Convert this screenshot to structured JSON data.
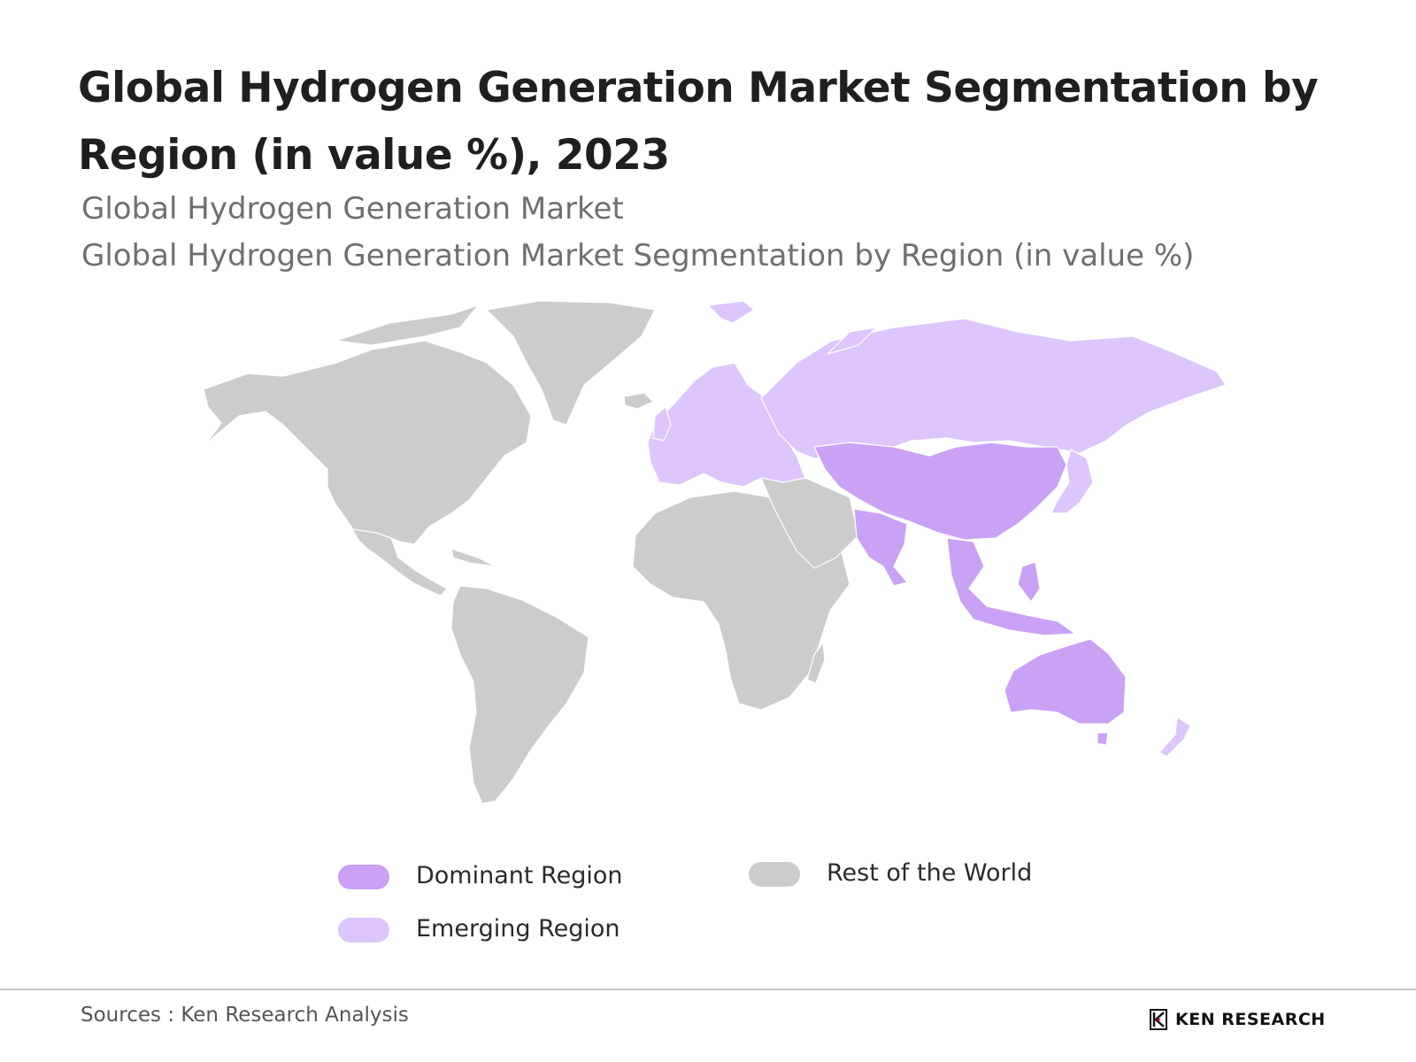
{
  "header": {
    "title": "Global Hydrogen Generation Market Segmentation by Region (in value %), 2023",
    "subtitle_1": "Global Hydrogen Generation Market",
    "subtitle_2": "Global Hydrogen Generation Market Segmentation by Region (in value %)"
  },
  "map": {
    "colors": {
      "dominant": "#c9a1f5",
      "emerging": "#dcc6fb",
      "rest": "#cccccc",
      "border": "#ffffff"
    },
    "regions": [
      {
        "name": "North America",
        "category": "rest"
      },
      {
        "name": "Greenland",
        "category": "rest"
      },
      {
        "name": "South America",
        "category": "rest"
      },
      {
        "name": "Africa",
        "category": "rest"
      },
      {
        "name": "Middle East",
        "category": "rest"
      },
      {
        "name": "Europe",
        "category": "emerging"
      },
      {
        "name": "Russia",
        "category": "emerging"
      },
      {
        "name": "Japan",
        "category": "emerging"
      },
      {
        "name": "New Zealand",
        "category": "emerging"
      },
      {
        "name": "China",
        "category": "dominant"
      },
      {
        "name": "India",
        "category": "dominant"
      },
      {
        "name": "Southeast Asia",
        "category": "dominant"
      },
      {
        "name": "Australia",
        "category": "dominant"
      }
    ]
  },
  "legend": {
    "dominant": {
      "label": "Dominant Region",
      "color": "#c9a1f5"
    },
    "emerging": {
      "label": "Emerging Region",
      "color": "#dcc6fb"
    },
    "rest": {
      "label": "Rest of the World",
      "color": "#cccccc"
    }
  },
  "footer": {
    "source": "Sources : Ken Research Analysis",
    "logo_text": "KEN RESEARCH",
    "logo_icon": "ken-research-logo-icon"
  }
}
